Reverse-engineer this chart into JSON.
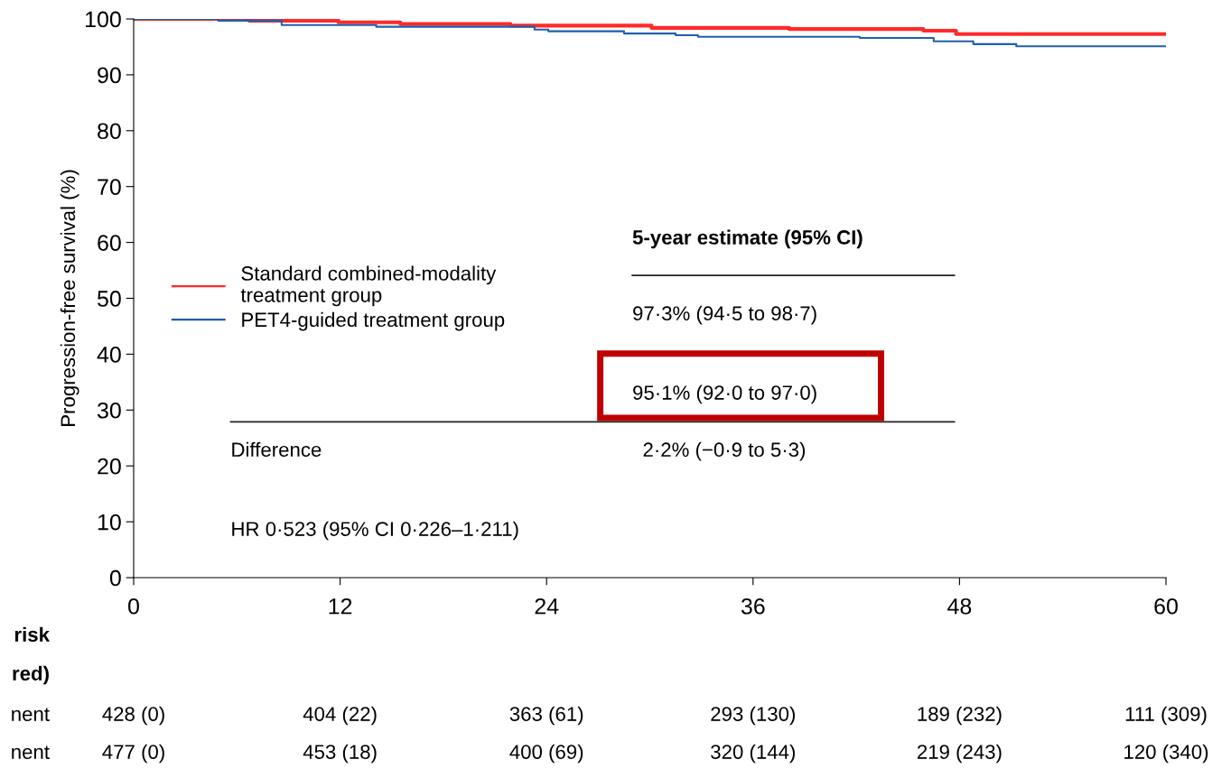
{
  "chart_data": {
    "type": "step",
    "ylabel": "Progression-free survival (%)",
    "xlim": [
      0,
      60
    ],
    "xticks": [
      0,
      12,
      24,
      36,
      48,
      60
    ],
    "ylim": [
      0,
      100
    ],
    "yticks": [
      0,
      10,
      20,
      30,
      40,
      50,
      60,
      70,
      80,
      90,
      100
    ],
    "grid": false,
    "legend": "center left",
    "marker": "none",
    "line_style": "solid",
    "series": [
      {
        "name": "Standard combined-modality\ntreatment group",
        "color": "#ff2a2a",
        "x": [
          0,
          6.7,
          11.9,
          15.5,
          21.9,
          30.1,
          38.1,
          45.9,
          47.8,
          60
        ],
        "values": [
          100,
          99.7,
          99.4,
          99.1,
          98.8,
          98.4,
          98.2,
          97.9,
          97.3,
          97.3
        ]
      },
      {
        "name": "PET4-guided treatment group",
        "color": "#1f5fae",
        "x": [
          0,
          4.9,
          8.6,
          14.1,
          23.3,
          24.1,
          28.5,
          31.5,
          32.8,
          42.2,
          46.5,
          48.8,
          51.3,
          60
        ],
        "values": [
          100,
          99.7,
          98.9,
          98.6,
          98.1,
          97.8,
          97.4,
          97.1,
          96.8,
          96.6,
          96.0,
          95.5,
          95.1,
          95.1
        ]
      }
    ],
    "annotations": [
      "5-year estimate (95% CI)",
      "97·3% (94·5 to 98·7)",
      "95·1% (92·0 to 97·0)",
      "Difference",
      "2·2% (−0·9 to 5·3)",
      "HR 0·523 (95% CI 0·226–1·211)",
      "risk",
      "red)",
      "nent",
      "nent",
      "428 (0)",
      "404 (22)",
      "363 (61)",
      "293 (130)",
      "189 (232)",
      "111 (309)",
      "477 (0)",
      "453 (18)",
      "400 (69)",
      "320 (144)",
      "219 (243)",
      "120 (340)"
    ]
  }
}
